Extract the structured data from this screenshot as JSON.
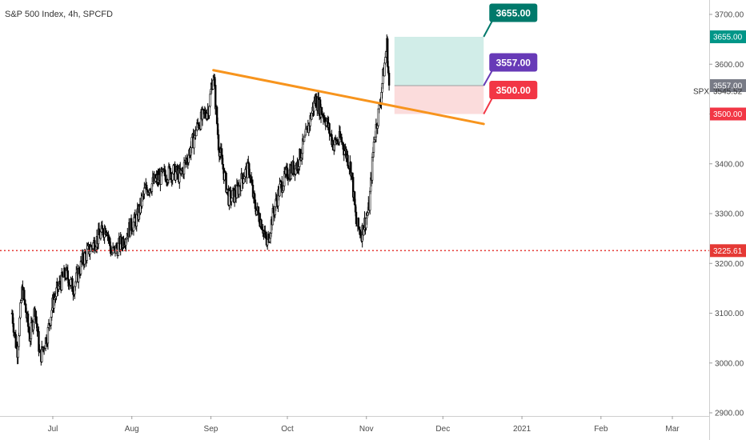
{
  "header": {
    "title": "S&P 500 Index, 4h, SPCFD"
  },
  "chart_data": {
    "type": "candlestick",
    "ticker": "SPX",
    "last_price": "3545.52",
    "x_labels": [
      "Jul",
      "Aug",
      "Sep",
      "Oct",
      "Nov",
      "Dec",
      "2021",
      "Feb",
      "Mar"
    ],
    "y_ticks": [
      "3700.00",
      "3600.00",
      "3500.00",
      "3400.00",
      "3300.00",
      "3200.00",
      "3100.00",
      "3000.00",
      "2900.00"
    ],
    "ylim": [
      2900,
      3725
    ],
    "close_path": [
      [
        "2020-06-15",
        3100
      ],
      [
        "2020-06-17",
        3020
      ],
      [
        "2020-06-19",
        3150
      ],
      [
        "2020-06-22",
        3050
      ],
      [
        "2020-06-24",
        3110
      ],
      [
        "2020-06-26",
        3010
      ],
      [
        "2020-06-29",
        3060
      ],
      [
        "2020-07-01",
        3120
      ],
      [
        "2020-07-03",
        3150
      ],
      [
        "2020-07-06",
        3180
      ],
      [
        "2020-07-09",
        3150
      ],
      [
        "2020-07-13",
        3210
      ],
      [
        "2020-07-15",
        3225
      ],
      [
        "2020-07-17",
        3240
      ],
      [
        "2020-07-20",
        3260
      ],
      [
        "2020-07-22",
        3275
      ],
      [
        "2020-07-24",
        3220
      ],
      [
        "2020-07-27",
        3235
      ],
      [
        "2020-07-29",
        3250
      ],
      [
        "2020-07-31",
        3270
      ],
      [
        "2020-08-03",
        3290
      ],
      [
        "2020-08-06",
        3345
      ],
      [
        "2020-08-10",
        3365
      ],
      [
        "2020-08-13",
        3375
      ],
      [
        "2020-08-17",
        3385
      ],
      [
        "2020-08-20",
        3375
      ],
      [
        "2020-08-24",
        3430
      ],
      [
        "2020-08-27",
        3480
      ],
      [
        "2020-08-31",
        3510
      ],
      [
        "2020-09-02",
        3580
      ],
      [
        "2020-09-04",
        3440
      ],
      [
        "2020-09-08",
        3330
      ],
      [
        "2020-09-11",
        3340
      ],
      [
        "2020-09-14",
        3380
      ],
      [
        "2020-09-16",
        3390
      ],
      [
        "2020-09-18",
        3320
      ],
      [
        "2020-09-21",
        3280
      ],
      [
        "2020-09-23",
        3236
      ],
      [
        "2020-09-25",
        3290
      ],
      [
        "2020-09-28",
        3350
      ],
      [
        "2020-10-01",
        3380
      ],
      [
        "2020-10-05",
        3400
      ],
      [
        "2020-10-08",
        3450
      ],
      [
        "2020-10-12",
        3530
      ],
      [
        "2020-10-14",
        3510
      ],
      [
        "2020-10-16",
        3490
      ],
      [
        "2020-10-19",
        3440
      ],
      [
        "2020-10-22",
        3450
      ],
      [
        "2020-10-26",
        3390
      ],
      [
        "2020-10-28",
        3280
      ],
      [
        "2020-10-30",
        3260
      ],
      [
        "2020-11-02",
        3310
      ],
      [
        "2020-11-04",
        3450
      ],
      [
        "2020-11-06",
        3510
      ],
      [
        "2020-11-09",
        3640
      ],
      [
        "2020-11-10",
        3545
      ]
    ],
    "annotations": {
      "trendline": {
        "start": [
          "2020-09-02",
          3588
        ],
        "end": [
          "2020-12-17",
          3480
        ],
        "color": "#f7941d"
      },
      "horizontal_line": {
        "value": 3225.61,
        "label": "3225.61",
        "color": "#e53935"
      },
      "position": {
        "start_date": "2020-11-12",
        "end_date": "2020-12-17",
        "entry": {
          "value": 3557,
          "label": "3557.00",
          "color": "#673ab7"
        },
        "target": {
          "value": 3655,
          "label": "3655.00",
          "color": "#00796b"
        },
        "stop": {
          "value": 3500,
          "label": "3500.00",
          "color": "#f23645"
        },
        "profit_fill": "#d1ede8",
        "loss_fill": "#fbdcdc"
      },
      "axis_tags": [
        {
          "value": 3655,
          "label": "3655.00",
          "color": "#009688"
        },
        {
          "value": 3557,
          "label": "3557.00",
          "color": "#787b86"
        },
        {
          "value": 3500,
          "label": "3500.00",
          "color": "#f23645"
        },
        {
          "value": 3225.61,
          "label": "3225.61",
          "color": "#e53935"
        }
      ]
    }
  }
}
